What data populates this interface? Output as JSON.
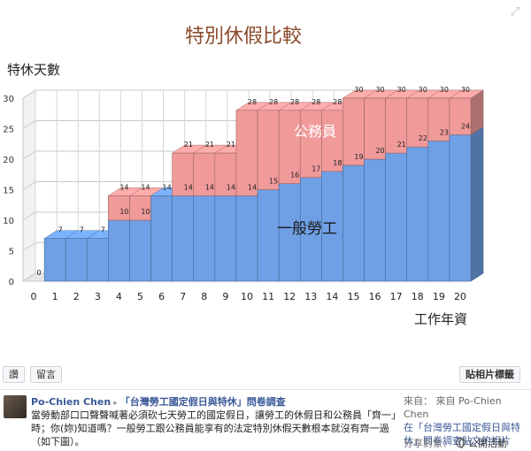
{
  "chart_data": {
    "type": "bar",
    "title": "特別休假比較",
    "ylabel": "特休天數",
    "xlabel": "工作年資",
    "categories": [
      "0",
      "1",
      "2",
      "3",
      "4",
      "5",
      "6",
      "7",
      "8",
      "9",
      "10",
      "11",
      "12",
      "13",
      "14",
      "15",
      "16",
      "17",
      "18",
      "19",
      "20"
    ],
    "ylim": [
      0,
      30
    ],
    "yticks": [
      0,
      5,
      10,
      15,
      20,
      25,
      30
    ],
    "grid": true,
    "series": [
      {
        "name": "一般勞工",
        "color": "#6fa0e6",
        "values": [
          0,
          7,
          7,
          7,
          10,
          10,
          14,
          14,
          14,
          14,
          14,
          15,
          16,
          17,
          18,
          19,
          20,
          21,
          22,
          23,
          24
        ]
      },
      {
        "name": "公務員",
        "color": "#f09a9a",
        "values": [
          0,
          7,
          7,
          7,
          14,
          14,
          14,
          21,
          21,
          21,
          28,
          28,
          28,
          28,
          28,
          30,
          30,
          30,
          30,
          30,
          30
        ]
      }
    ]
  },
  "photo_actions": {
    "like_label": "讚",
    "comment_label": "留言",
    "tag_label": "貼相片標籤"
  },
  "caption": {
    "author": "Po-Chien Chen",
    "arrow": "▸",
    "album": "「台灣勞工國定假日與特休」問卷調查",
    "text": "當勞動部口口聲聲喊著必須砍七天勞工的國定假日，讓勞工的休假日和公務員「齊一」時；你(妳)知道嗎？一般勞工跟公務員能享有的法定特別休假天數根本就沒有齊一過（如下圖）。",
    "from_label": "來自：",
    "from_author": "來自 Po-Chien Chen",
    "from_album": "在「台灣勞工國定假日與特休」問卷調查貼文的相片",
    "share_label": "分享對象：",
    "share_value": "公開活動"
  }
}
